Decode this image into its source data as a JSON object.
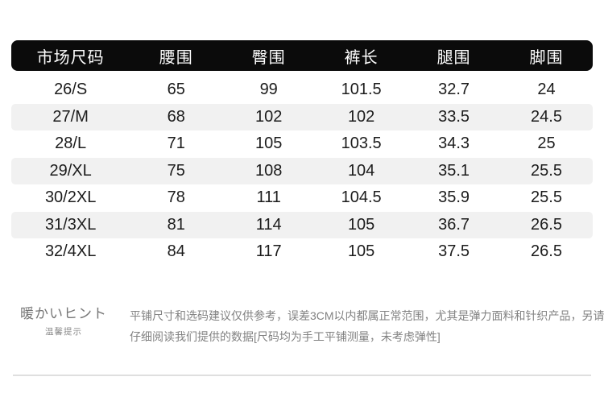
{
  "table": {
    "columns": [
      "市场尺码",
      "腰围",
      "臀围",
      "裤长",
      "腿围",
      "脚围"
    ],
    "rows": [
      [
        "26/S",
        "65",
        "99",
        "101.5",
        "32.7",
        "24"
      ],
      [
        "27/M",
        "68",
        "102",
        "102",
        "33.5",
        "24.5"
      ],
      [
        "28/L",
        "71",
        "105",
        "103.5",
        "34.3",
        "25"
      ],
      [
        "29/XL",
        "75",
        "108",
        "104",
        "35.1",
        "25.5"
      ],
      [
        "30/2XL",
        "78",
        "111",
        "104.5",
        "35.9",
        "25.5"
      ],
      [
        "31/3XL",
        "81",
        "114",
        "105",
        "36.7",
        "26.5"
      ],
      [
        "32/4XL",
        "84",
        "117",
        "105",
        "37.5",
        "26.5"
      ]
    ],
    "colors": {
      "header_bg": "#0b0b0b",
      "header_text": "#ffffff",
      "row_alt_bg": "#f1f1f1",
      "cell_text": "#1c1c1c",
      "divider": "#dfdfdf",
      "tips_text": "#828282"
    }
  },
  "tips": {
    "title": "暖かいヒント",
    "subtitle": "温馨提示",
    "lines": [
      "平铺尺寸和选码建议仅供参考，误差3CM以内都属正常范围，尤其是弹力面料和针织产品，另请",
      "仔细阅读我们提供的数据[尺码均为手工平铺测量，未考虑弹性]"
    ]
  },
  "chart_data": {
    "type": "table",
    "title": "市场尺码 size chart (cm)",
    "columns": [
      "市场尺码",
      "腰围",
      "臀围",
      "裤长",
      "腿围",
      "脚围"
    ],
    "rows": [
      {
        "市场尺码": "26/S",
        "腰围": 65,
        "臀围": 99,
        "裤长": 101.5,
        "腿围": 32.7,
        "脚围": 24
      },
      {
        "市场尺码": "27/M",
        "腰围": 68,
        "臀围": 102,
        "裤长": 102,
        "腿围": 33.5,
        "脚围": 24.5
      },
      {
        "市场尺码": "28/L",
        "腰围": 71,
        "臀围": 105,
        "裤长": 103.5,
        "腿围": 34.3,
        "脚围": 25
      },
      {
        "市场尺码": "29/XL",
        "腰围": 75,
        "臀围": 108,
        "裤长": 104,
        "腿围": 35.1,
        "脚围": 25.5
      },
      {
        "市场尺码": "30/2XL",
        "腰围": 78,
        "臀围": 111,
        "裤长": 104.5,
        "腿围": 35.9,
        "脚围": 25.5
      },
      {
        "市场尺码": "31/3XL",
        "腰围": 81,
        "臀围": 114,
        "裤长": 105,
        "腿围": 36.7,
        "脚围": 26.5
      },
      {
        "市场尺码": "32/4XL",
        "腰围": 84,
        "臀围": 117,
        "裤长": 105,
        "腿围": 37.5,
        "脚围": 26.5
      }
    ],
    "notes": [
      "平铺尺寸和选码建议仅供参考，误差3CM以内都属正常范围，尤其是弹力面料和针织产品，另请仔细阅读我们提供的数据[尺码均为手工平铺测量，未考虑弹性]"
    ],
    "layout": {
      "header_style": "black rounded bar",
      "zebra_striping": true,
      "alt_rows": [
        1,
        3,
        5
      ]
    }
  }
}
